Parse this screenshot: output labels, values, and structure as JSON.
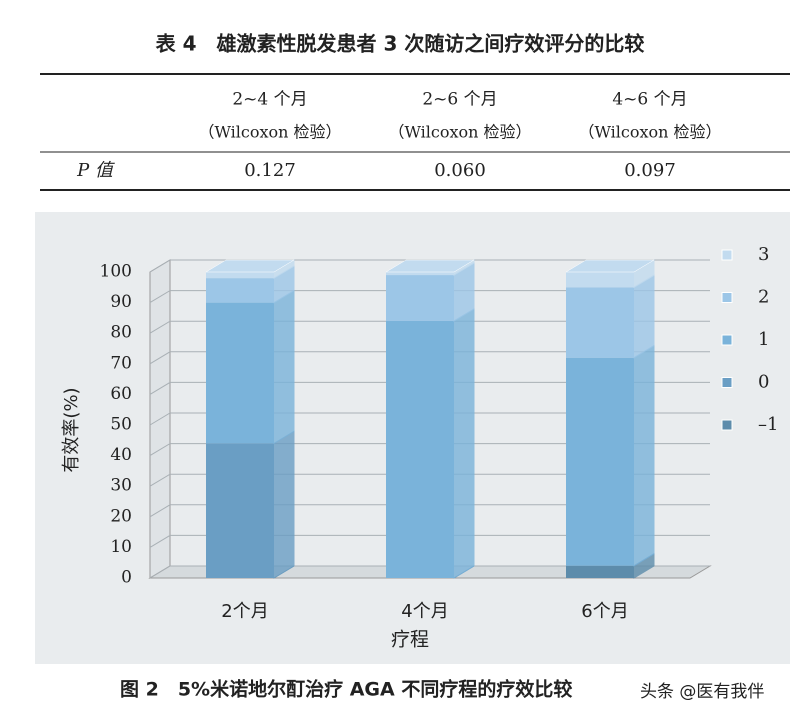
{
  "table": {
    "title": "表 4　雄激素性脱发患者 3 次随访之间疗效评分的比较",
    "columns": [
      {
        "period": "2~4 个月",
        "test": "（Wilcoxon 检验）"
      },
      {
        "period": "2~6 个月",
        "test": "（Wilcoxon 检验）"
      },
      {
        "period": "4~6 个月",
        "test": "（Wilcoxon 检验）"
      }
    ],
    "rows": [
      [
        "P 值",
        "0.127",
        "0.060",
        "0.097"
      ]
    ]
  },
  "chart_data": {
    "type": "bar",
    "stacked": true,
    "caption": "图 2　5%米诺地尔酊治疗 AGA 不同疗程的疗效比较",
    "watermark": "头条 @医有我伴",
    "categories": [
      "2个月",
      "4个月",
      "6个月"
    ],
    "x_label": "疗程",
    "y_label": "有效率(%)",
    "ylim": [
      0,
      100
    ],
    "yticks": [
      0,
      10,
      20,
      30,
      40,
      50,
      60,
      70,
      80,
      90,
      100
    ],
    "grid": true,
    "series": [
      {
        "name": "–1",
        "color": "#5d8cab",
        "values": [
          0,
          0,
          4
        ]
      },
      {
        "name": "0",
        "color": "#6a9ec4",
        "values": [
          44,
          0,
          0
        ]
      },
      {
        "name": "1",
        "color": "#7ab3da",
        "values": [
          46,
          84,
          68
        ]
      },
      {
        "name": "2",
        "color": "#9cc6e7",
        "values": [
          8,
          15,
          23
        ]
      },
      {
        "name": "3",
        "color": "#c2dbef",
        "values": [
          2,
          1,
          5
        ]
      }
    ]
  }
}
